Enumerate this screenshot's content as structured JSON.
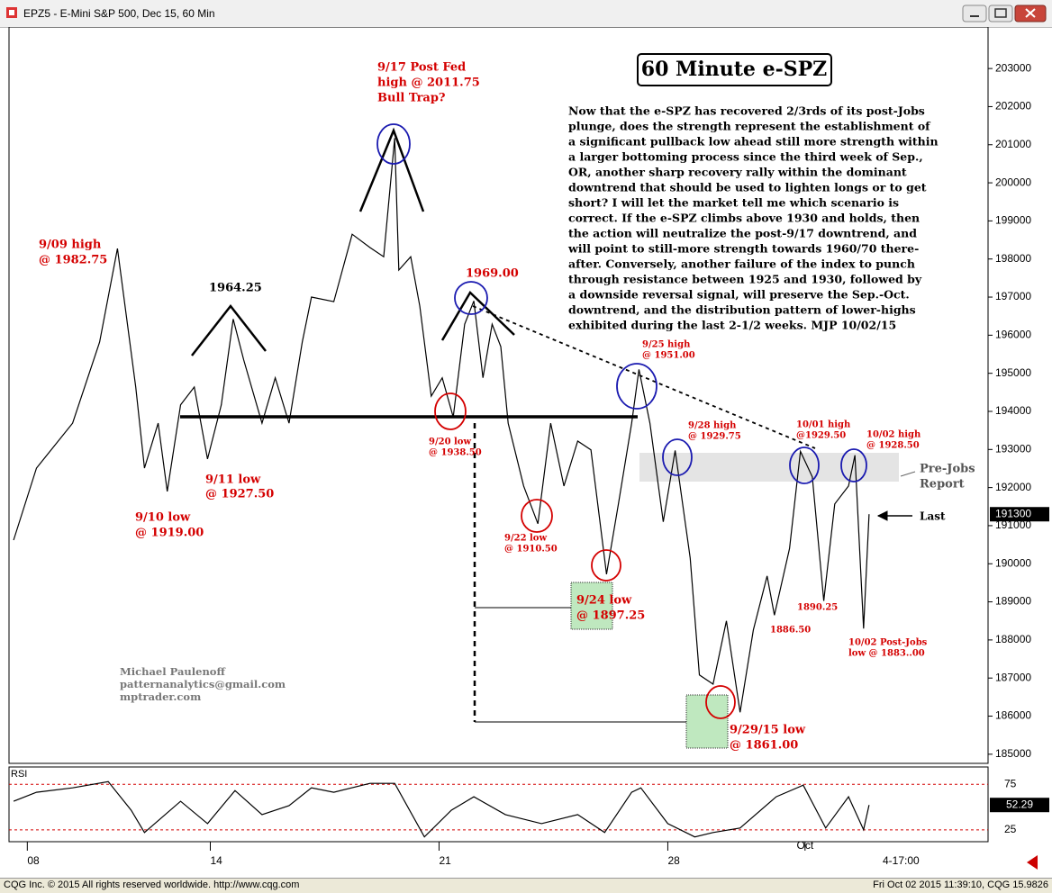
{
  "window": {
    "title": "EPZ5 - E-Mini S&P 500, Dec 15, 60 Min",
    "status_left": "CQG Inc. © 2015 All rights reserved worldwide. http://www.cqg.com",
    "status_right": "Fri Oct 02 2015 11:39:10, CQG 15.9826",
    "session_label": "4-17:00"
  },
  "chart_data": [
    {
      "type": "line",
      "title": "60 Minute e-SPZ",
      "color": "#000000",
      "x": [
        -0.3,
        0.2,
        0.99,
        1.58,
        1.97,
        2.37,
        2.56,
        2.86,
        3.06,
        3.35,
        3.65,
        3.94,
        4.24,
        4.5,
        4.73,
        5.13,
        5.42,
        5.72,
        6.01,
        6.21,
        6.7,
        7.1,
        7.49,
        7.79,
        8.03,
        8.12,
        8.38,
        8.58,
        8.83,
        9.07,
        9.31,
        9.56,
        9.76,
        9.96,
        10.16,
        10.35,
        10.51,
        10.85,
        11.16,
        11.44,
        11.73,
        12.03,
        12.32,
        12.66,
        12.92,
        13.21,
        13.37,
        13.61,
        13.9,
        14.16,
        14.49,
        14.69,
        14.99,
        15.28,
        15.58,
        15.87,
        16.17,
        16.33,
        16.66,
        16.9,
        17.16,
        17.41,
        17.65,
        17.95,
        18.09,
        18.28,
        18.4
      ],
      "values": [
        190620,
        192510,
        193690,
        195820,
        198275,
        194640,
        192510,
        193690,
        191900,
        194170,
        194640,
        192750,
        194170,
        196425,
        195350,
        193690,
        194880,
        193690,
        195820,
        197000,
        196880,
        198650,
        198300,
        198060,
        201175,
        197710,
        198060,
        196760,
        194400,
        194880,
        193850,
        196290,
        196900,
        194880,
        196290,
        195700,
        193690,
        192040,
        191050,
        193690,
        192040,
        193220,
        192990,
        189725,
        191570,
        193690,
        195100,
        193690,
        191100,
        192975,
        190150,
        187080,
        186840,
        188500,
        186100,
        188260,
        189680,
        188650,
        190400,
        192950,
        192280,
        189025,
        191570,
        192040,
        192850,
        188300,
        191300
      ],
      "xlim": [
        -0.4,
        21
      ],
      "xticks": [
        {
          "value": 0,
          "label": "08"
        },
        {
          "value": 4,
          "label": "14"
        },
        {
          "value": 9,
          "label": "21"
        },
        {
          "value": 14,
          "label": "28"
        },
        {
          "value": 17,
          "label": "Oct"
        }
      ],
      "ylim": [
        184760,
        204090
      ],
      "yticks": [
        185000,
        186000,
        187000,
        188000,
        189000,
        190000,
        191000,
        192000,
        193000,
        194000,
        195000,
        196000,
        197000,
        198000,
        199000,
        200000,
        201000,
        202000,
        203000
      ],
      "last_value": 191300,
      "commentary": [
        "Now that the e-SPZ has recovered 2/3rds of its post-Jobs",
        "plunge, does the strength represent the establishment of",
        "a significant pullback low ahead still more strength within",
        "a larger bottoming process since the third week of Sep.,",
        "OR, another sharp recovery rally within the dominant",
        "downtrend that should be used to lighten longs or to get",
        "short? I will let the market tell me which scenario is",
        "correct. If the e-SPZ climbs above 1930 and holds, then",
        "the action will neutralize the post-9/17 downtrend, and",
        "will point to still-more strength towards 1960/70 there-",
        "after. Conversely, another failure of the index to punch",
        "through resistance between 1925 and 1930, followed by",
        "a downside reversal signal, will preserve the Sep.-Oct.",
        "downtrend, and the distribution pattern of lower-highs",
        "exhibited during the last 2-1/2 weeks.  MJP 10/02/15"
      ],
      "author": [
        "Michael Paulenoff",
        "patternanalytics@gmail.com",
        "mptrader.com"
      ],
      "annotations": [
        [
          "9/17 Post Fed",
          "high @ 2011.75",
          "Bull Trap?"
        ],
        [
          "9/09 high",
          "@ 1982.75"
        ],
        [
          "1964.25"
        ],
        [
          "9/11 low",
          "@ 1927.50"
        ],
        [
          "9/10 low",
          "@ 1919.00"
        ],
        [
          "1969.00"
        ],
        [
          "9/20 low",
          "@ 1938.50"
        ],
        [
          "9/25 high",
          "@ 1951.00"
        ],
        [
          "9/28 high",
          "@ 1929.75"
        ],
        [
          "9/22 low",
          "@ 1910.50"
        ],
        [
          "9/24 low",
          "@ 1897.25"
        ],
        [
          "9/29/15 low",
          "@ 1861.00"
        ],
        [
          "10/01 high",
          "@1929.50"
        ],
        [
          "10/02 high",
          "@ 1928.50"
        ],
        [
          "1886.50"
        ],
        [
          "1890.25"
        ],
        [
          "10/02 Post-Jobs",
          "low @ 1883..00"
        ],
        [
          "Pre-Jobs",
          "Report"
        ],
        [
          "Last"
        ]
      ]
    },
    {
      "type": "line",
      "title": "RSI",
      "color": "#000000",
      "x": [
        -0.3,
        0.2,
        0.99,
        1.77,
        2.27,
        2.56,
        3.35,
        3.94,
        4.54,
        5.13,
        5.72,
        6.21,
        6.7,
        7.49,
        8.03,
        8.68,
        9.27,
        9.76,
        10.45,
        11.24,
        12.03,
        12.62,
        13.21,
        13.41,
        14.0,
        14.59,
        14.99,
        15.58,
        16.37,
        16.96,
        17.45,
        17.95,
        18.28,
        18.4
      ],
      "values": [
        56.4,
        66.2,
        71.1,
        77.9,
        46.6,
        22.1,
        56.4,
        31.9,
        68.1,
        41.7,
        51.5,
        71.1,
        66.2,
        76,
        76,
        17.2,
        46.6,
        61.3,
        41.7,
        31.9,
        41.7,
        22.1,
        66.2,
        71.1,
        31.9,
        17.2,
        22.1,
        27,
        61.3,
        74,
        27,
        61.3,
        25,
        52.29
      ],
      "ylim": [
        12,
        94
      ],
      "yticks": [
        25,
        75
      ],
      "last_value": 52.29
    }
  ]
}
